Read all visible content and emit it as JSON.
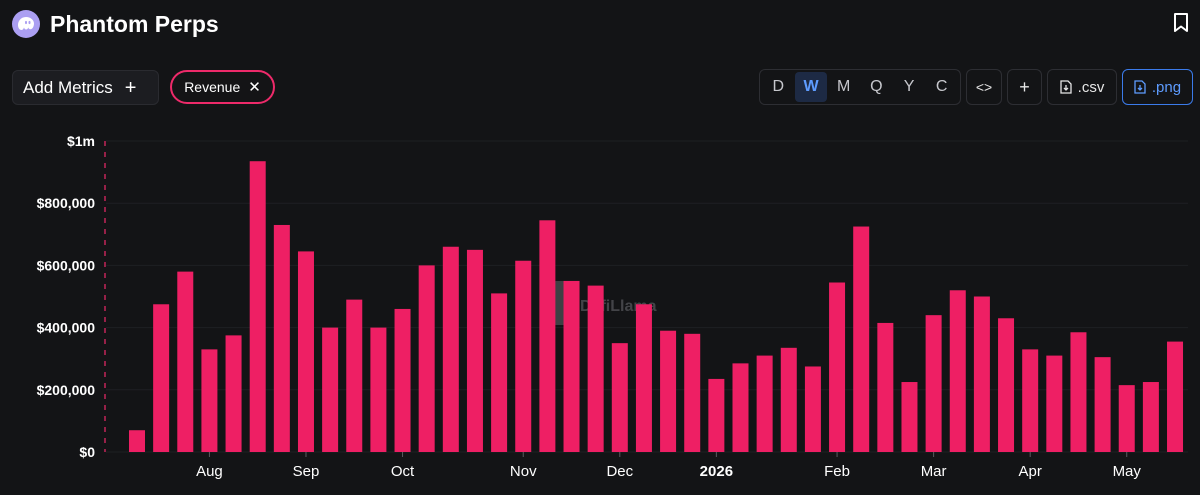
{
  "header": {
    "title": "Phantom Perps"
  },
  "toolbar": {
    "add_metrics_label": "Add Metrics",
    "add_metrics_plus": "+",
    "chip_label": "Revenue",
    "chip_close": "✕",
    "granularity": [
      {
        "label": "D",
        "active": false
      },
      {
        "label": "W",
        "active": true
      },
      {
        "label": "M",
        "active": false
      },
      {
        "label": "Q",
        "active": false
      },
      {
        "label": "Y",
        "active": false
      },
      {
        "label": "C",
        "active": false
      }
    ],
    "embed_label": "<>",
    "add_chart_label": "+",
    "csv_label": ".csv",
    "png_label": ".png"
  },
  "icons": {
    "logo": "phantom-ghost-icon",
    "bookmark": "bookmark-icon",
    "download": "download-file-icon"
  },
  "colors": {
    "background": "#131416",
    "bar": "#ee1f64",
    "accent": "#3b7bea",
    "chip_border": "#ee2a6a"
  },
  "chart_data": {
    "type": "bar",
    "title": "",
    "xlabel": "",
    "ylabel": "",
    "ylim": [
      0,
      1000000
    ],
    "y_ticks": [
      "$0",
      "$200,000",
      "$400,000",
      "$600,000",
      "$800,000",
      "$1m"
    ],
    "y_tick_values": [
      0,
      200000,
      400000,
      600000,
      800000,
      1000000
    ],
    "x_ticks": [
      {
        "label": "Aug",
        "bar_index": 3,
        "bold": false
      },
      {
        "label": "Sep",
        "bar_index": 7,
        "bold": false
      },
      {
        "label": "Oct",
        "bar_index": 11,
        "bold": false
      },
      {
        "label": "Nov",
        "bar_index": 16,
        "bold": false
      },
      {
        "label": "Dec",
        "bar_index": 20,
        "bold": false
      },
      {
        "label": "2026",
        "bar_index": 24,
        "bold": true
      },
      {
        "label": "Feb",
        "bar_index": 29,
        "bold": false
      },
      {
        "label": "Mar",
        "bar_index": 33,
        "bold": false
      },
      {
        "label": "Apr",
        "bar_index": 37,
        "bold": false
      },
      {
        "label": "May",
        "bar_index": 41,
        "bold": false
      }
    ],
    "series": [
      {
        "values": [
          70000,
          475000,
          580000,
          330000,
          375000,
          935000,
          730000,
          645000,
          400000,
          490000,
          400000,
          460000,
          600000,
          660000,
          650000,
          510000,
          615000,
          745000,
          550000,
          535000,
          350000,
          475000,
          390000,
          380000,
          235000,
          285000,
          310000,
          335000,
          275000,
          545000,
          725000,
          415000,
          225000,
          440000,
          520000,
          500000,
          430000,
          330000,
          310000,
          385000,
          305000,
          215000,
          225000,
          355000
        ]
      }
    ],
    "watermark": "DefiLlama",
    "grid": true
  }
}
